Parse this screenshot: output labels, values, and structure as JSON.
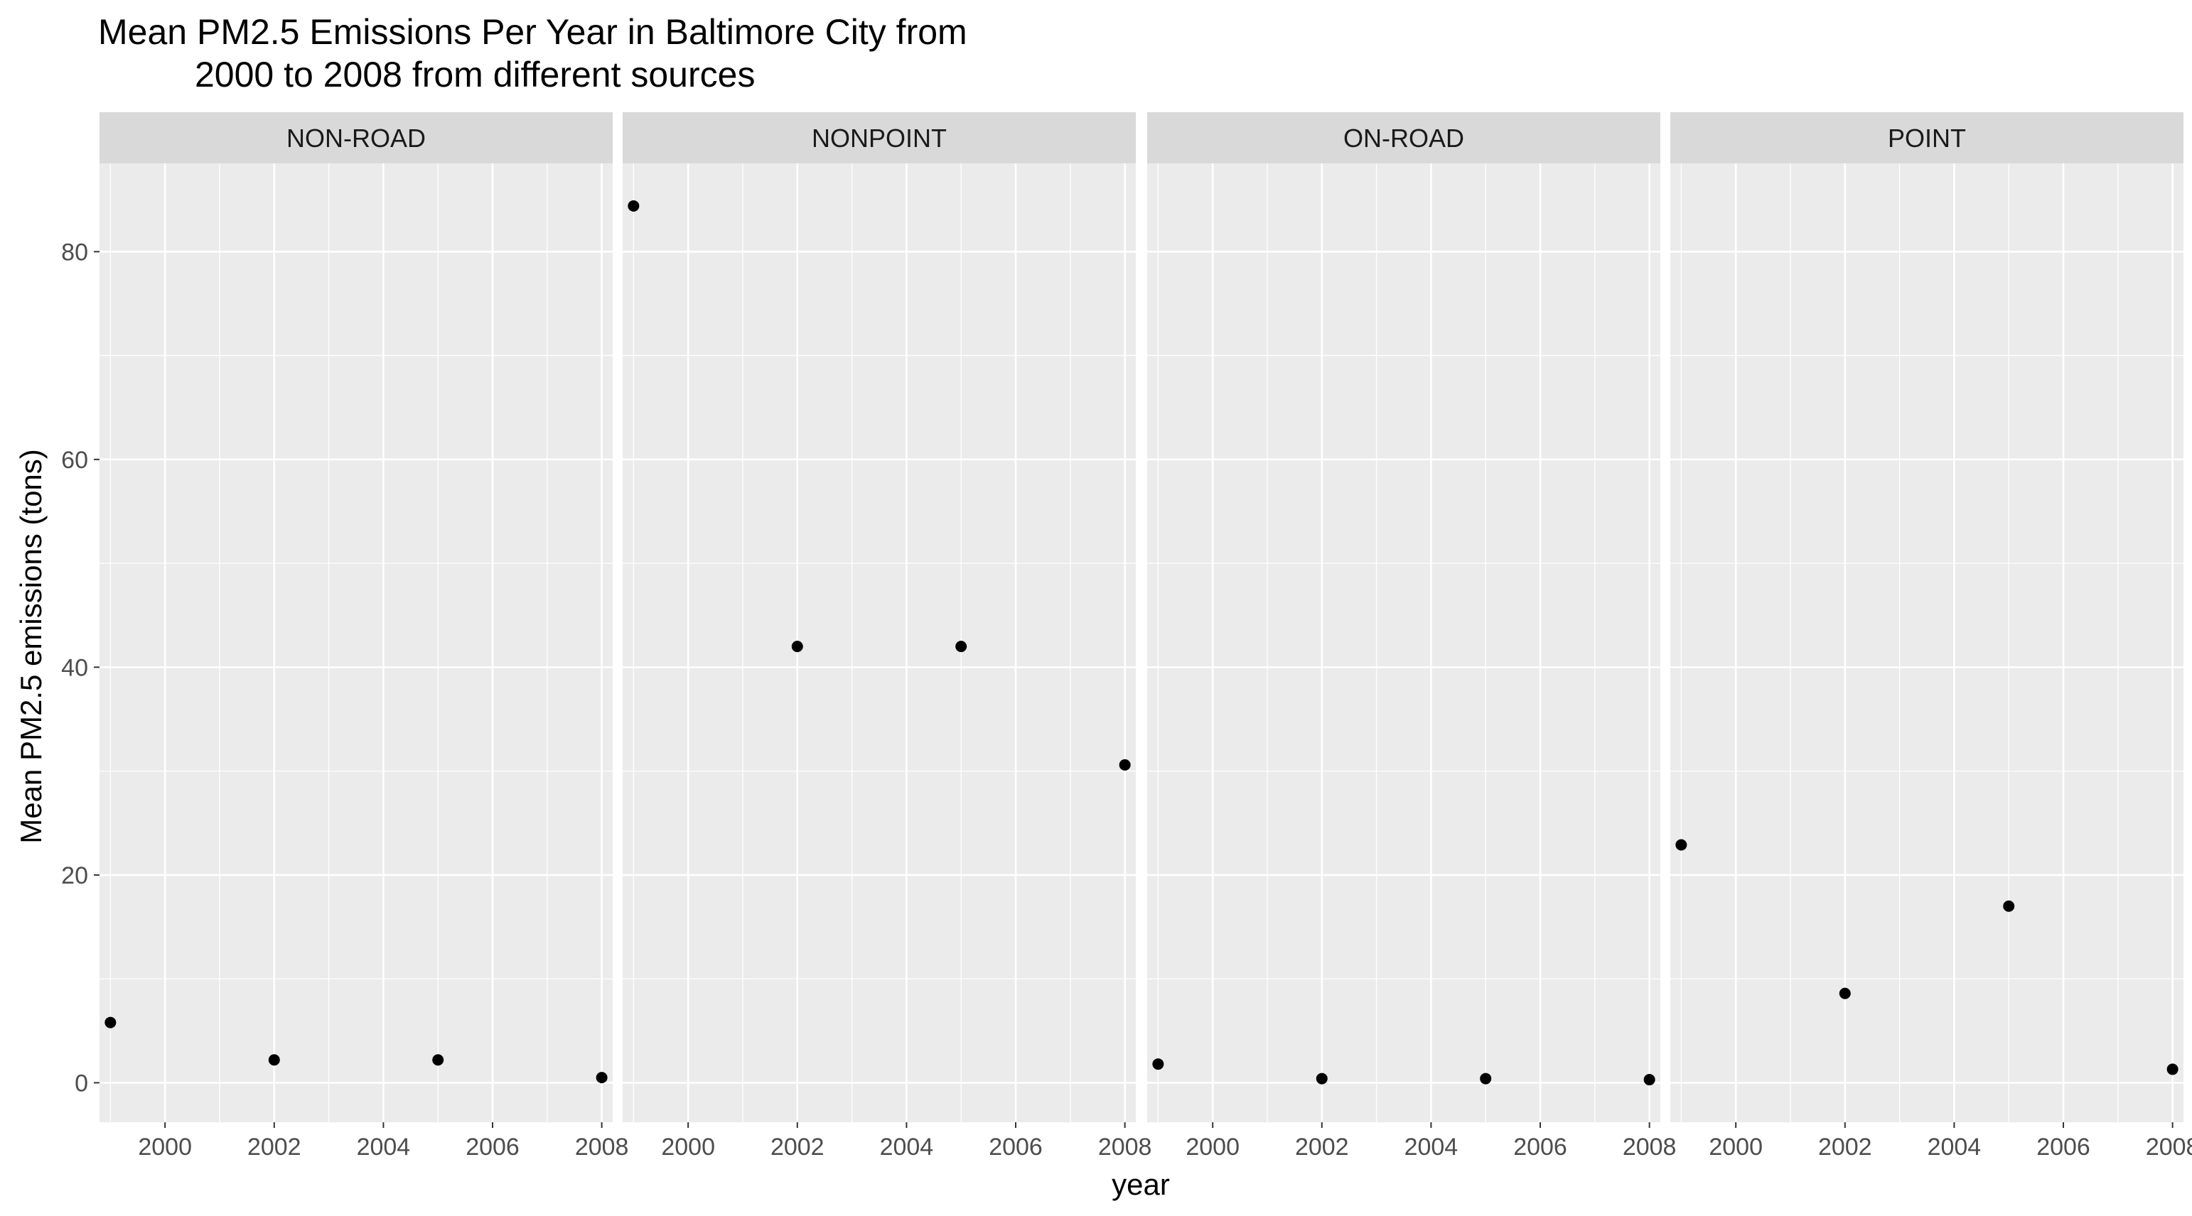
{
  "chart_data": {
    "type": "scatter",
    "title": "Mean PM2.5 Emissions Per Year in Baltimore City from\n        2000 to 2008 from different sources",
    "xlabel": "year",
    "ylabel": "Mean PM2.5 emissions (tons)",
    "x_ticks": [
      2000,
      2002,
      2004,
      2006,
      2008
    ],
    "y_ticks": [
      0,
      20,
      40,
      60,
      80
    ],
    "xlim": [
      1998.8,
      2008.2
    ],
    "ylim": [
      -3.8,
      88.5
    ],
    "grid": true,
    "facets": [
      {
        "name": "NON-ROAD",
        "points": [
          {
            "x": 1999,
            "y": 5.8
          },
          {
            "x": 2002,
            "y": 2.2
          },
          {
            "x": 2005,
            "y": 2.2
          },
          {
            "x": 2008,
            "y": 0.5
          }
        ]
      },
      {
        "name": "NONPOINT",
        "points": [
          {
            "x": 1999,
            "y": 84.4
          },
          {
            "x": 2002,
            "y": 42.0
          },
          {
            "x": 2005,
            "y": 42.0
          },
          {
            "x": 2008,
            "y": 30.6
          }
        ]
      },
      {
        "name": "ON-ROAD",
        "points": [
          {
            "x": 1999,
            "y": 1.8
          },
          {
            "x": 2002,
            "y": 0.4
          },
          {
            "x": 2005,
            "y": 0.4
          },
          {
            "x": 2008,
            "y": 0.3
          }
        ]
      },
      {
        "name": "POINT",
        "points": [
          {
            "x": 1999,
            "y": 22.9
          },
          {
            "x": 2002,
            "y": 8.6
          },
          {
            "x": 2005,
            "y": 17.0
          },
          {
            "x": 2008,
            "y": 1.3
          }
        ]
      }
    ],
    "colors": {
      "panel": "#ebebeb",
      "strip": "#d9d9d9",
      "grid": "#ffffff",
      "point": "#000000",
      "tick_text": "#4d4d4d"
    }
  }
}
